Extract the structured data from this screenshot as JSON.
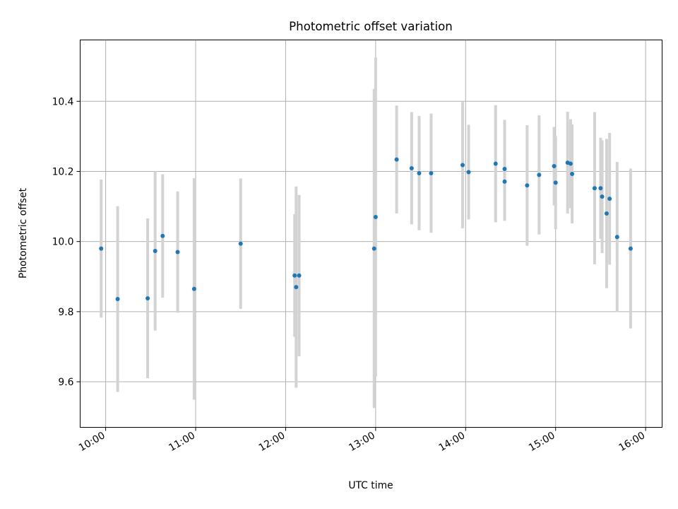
{
  "chart_data": {
    "type": "scatter",
    "title": "Photometric offset variation",
    "xlabel": "UTC time",
    "ylabel": "Photometric offset",
    "xlim": [
      "09:43",
      "16:11"
    ],
    "ylim": [
      9.47,
      10.575
    ],
    "x_ticks": [
      "10:00",
      "11:00",
      "12:00",
      "13:00",
      "14:00",
      "15:00",
      "16:00"
    ],
    "y_ticks": [
      "9.6",
      "9.8",
      "10.0",
      "10.2",
      "10.4"
    ],
    "grid": true,
    "marker_color": "#1f77b4",
    "errorbar_color": "#d3d3d3",
    "series": [
      {
        "points": [
          {
            "t": "09:57",
            "y": 9.98,
            "err": 0.197
          },
          {
            "t": "10:08",
            "y": 9.836,
            "err": 0.265
          },
          {
            "t": "10:28",
            "y": 9.838,
            "err": 0.228
          },
          {
            "t": "10:33",
            "y": 9.973,
            "err": 0.227
          },
          {
            "t": "10:38",
            "y": 10.016,
            "err": 0.176
          },
          {
            "t": "10:48",
            "y": 9.97,
            "err": 0.173
          },
          {
            "t": "10:59",
            "y": 9.865,
            "err": 0.316
          },
          {
            "t": "11:30",
            "y": 9.994,
            "err": 0.186
          },
          {
            "t": "12:06",
            "y": 9.903,
            "err": 0.175
          },
          {
            "t": "12:07",
            "y": 9.87,
            "err": 0.287
          },
          {
            "t": "12:09",
            "y": 9.903,
            "err": 0.23
          },
          {
            "t": "12:59",
            "y": 9.98,
            "err": 0.455
          },
          {
            "t": "13:00",
            "y": 10.07,
            "err": 0.455
          },
          {
            "t": "13:14",
            "y": 10.234,
            "err": 0.154
          },
          {
            "t": "13:24",
            "y": 10.209,
            "err": 0.16
          },
          {
            "t": "13:29",
            "y": 10.195,
            "err": 0.163
          },
          {
            "t": "13:37",
            "y": 10.195,
            "err": 0.17
          },
          {
            "t": "13:58",
            "y": 10.218,
            "err": 0.18
          },
          {
            "t": "14:02",
            "y": 10.198,
            "err": 0.135
          },
          {
            "t": "14:20",
            "y": 10.222,
            "err": 0.167
          },
          {
            "t": "14:26",
            "y": 10.171,
            "err": 0.112
          },
          {
            "t": "14:26",
            "y": 10.207,
            "err": 0.14
          },
          {
            "t": "14:41",
            "y": 10.16,
            "err": 0.172
          },
          {
            "t": "14:49",
            "y": 10.19,
            "err": 0.17
          },
          {
            "t": "14:59",
            "y": 10.215,
            "err": 0.112
          },
          {
            "t": "15:00",
            "y": 10.168,
            "err": 0.133
          },
          {
            "t": "15:08",
            "y": 10.225,
            "err": 0.145
          },
          {
            "t": "15:10",
            "y": 10.222,
            "err": 0.127
          },
          {
            "t": "15:11",
            "y": 10.193,
            "err": 0.141
          },
          {
            "t": "15:26",
            "y": 10.152,
            "err": 0.217
          },
          {
            "t": "15:30",
            "y": 10.152,
            "err": 0.144
          },
          {
            "t": "15:31",
            "y": 10.128,
            "err": 0.161
          },
          {
            "t": "15:34",
            "y": 10.08,
            "err": 0.213
          },
          {
            "t": "15:36",
            "y": 10.122,
            "err": 0.188
          },
          {
            "t": "15:41",
            "y": 10.013,
            "err": 0.214
          },
          {
            "t": "15:50",
            "y": 9.98,
            "err": 0.228
          }
        ]
      }
    ]
  }
}
